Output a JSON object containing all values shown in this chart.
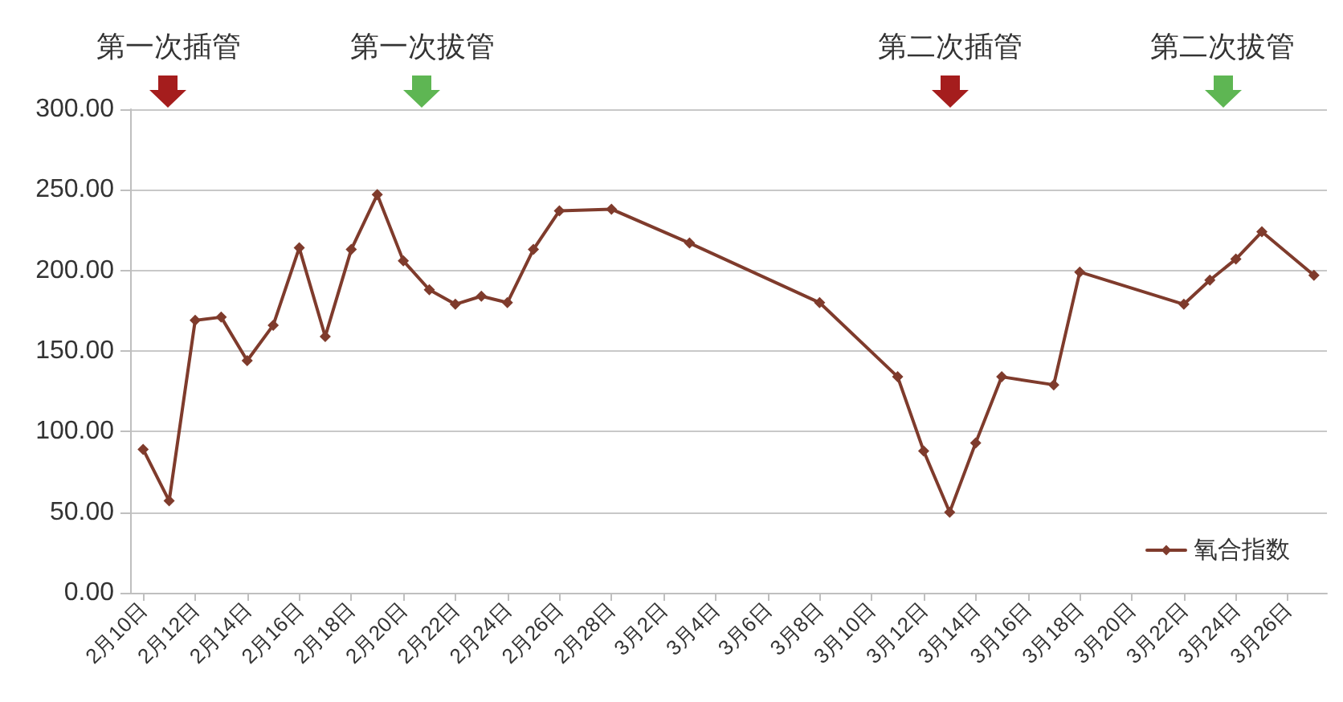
{
  "chart_data": {
    "type": "line",
    "x": [
      "--02-10",
      "--02-11",
      "--02-12",
      "--02-13",
      "--02-14",
      "--02-15",
      "--02-16",
      "--02-17",
      "--02-18",
      "--02-19",
      "--02-20",
      "--02-21",
      "--02-22",
      "--02-23",
      "--02-24",
      "--02-25",
      "--02-26",
      "--02-28",
      "--03-03",
      "--03-08",
      "--03-11",
      "--03-12",
      "--03-13",
      "--03-14",
      "--03-15",
      "--03-17",
      "--03-18",
      "--03-22",
      "--03-23",
      "--03-24",
      "--03-25",
      "--03-27"
    ],
    "series": [
      {
        "name": "氧合指数",
        "color": "#7f3b2c",
        "values": [
          89,
          57,
          169,
          171,
          144,
          166,
          214,
          159,
          213,
          247,
          206,
          188,
          179,
          184,
          180,
          213,
          237,
          238,
          217,
          180,
          134,
          88,
          50,
          93,
          134,
          129,
          199,
          179,
          194,
          207,
          224,
          197
        ]
      }
    ],
    "xlim": [
      "--02-09T12:00",
      "--03-27T12:00"
    ],
    "xticks": [
      {
        "value": "--02-10",
        "label": "2月10日"
      },
      {
        "value": "--02-12",
        "label": "2月12日"
      },
      {
        "value": "--02-14",
        "label": "2月14日"
      },
      {
        "value": "--02-16",
        "label": "2月16日"
      },
      {
        "value": "--02-18",
        "label": "2月18日"
      },
      {
        "value": "--02-20",
        "label": "2月20日"
      },
      {
        "value": "--02-22",
        "label": "2月22日"
      },
      {
        "value": "--02-24",
        "label": "2月24日"
      },
      {
        "value": "--02-26",
        "label": "2月26日"
      },
      {
        "value": "--02-28",
        "label": "2月28日"
      },
      {
        "value": "--03-02",
        "label": "3月2日"
      },
      {
        "value": "--03-04",
        "label": "3月4日"
      },
      {
        "value": "--03-06",
        "label": "3月6日"
      },
      {
        "value": "--03-08",
        "label": "3月8日"
      },
      {
        "value": "--03-10",
        "label": "3月10日"
      },
      {
        "value": "--03-12",
        "label": "3月12日"
      },
      {
        "value": "--03-14",
        "label": "3月14日"
      },
      {
        "value": "--03-16",
        "label": "3月16日"
      },
      {
        "value": "--03-18",
        "label": "3月18日"
      },
      {
        "value": "--03-20",
        "label": "3月20日"
      },
      {
        "value": "--03-22",
        "label": "3月22日"
      },
      {
        "value": "--03-24",
        "label": "3月24日"
      },
      {
        "value": "--03-26",
        "label": "3月26日"
      }
    ],
    "ylim": [
      0,
      300
    ],
    "yticks": [
      {
        "value": 0,
        "label": "0.00"
      },
      {
        "value": 50,
        "label": "50.00"
      },
      {
        "value": 100,
        "label": "100.00"
      },
      {
        "value": 150,
        "label": "150.00"
      },
      {
        "value": 200,
        "label": "200.00"
      },
      {
        "value": 250,
        "label": "250.00"
      },
      {
        "value": 300,
        "label": "300.00"
      }
    ],
    "grid": "y",
    "legend": "bottom right",
    "marker": "diamond",
    "line_style": "solid",
    "annotations": [
      "第一次插管",
      "第一次拔管",
      "第二次插管",
      "第二次拔管"
    ]
  }
}
